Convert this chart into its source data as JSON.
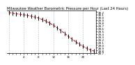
{
  "title": "Milwaukee Weather Barometric Pressure per Hour (Last 24 Hours)",
  "hours": [
    0,
    1,
    2,
    3,
    4,
    5,
    6,
    7,
    8,
    9,
    10,
    11,
    12,
    13,
    14,
    15,
    16,
    17,
    18,
    19,
    20,
    21,
    22,
    23
  ],
  "pressure": [
    30.18,
    30.16,
    30.14,
    30.12,
    30.1,
    30.08,
    30.05,
    30.02,
    29.98,
    29.93,
    29.87,
    29.8,
    29.72,
    29.63,
    29.53,
    29.43,
    29.32,
    29.22,
    29.12,
    29.03,
    28.95,
    28.88,
    28.82,
    28.78
  ],
  "line_color": "#cc0000",
  "marker_color": "#000000",
  "grid_color": "#bbbbbb",
  "bg_color": "#ffffff",
  "y_min": 28.7,
  "y_max": 30.25,
  "title_fontsize": 3.8,
  "tick_fontsize": 3.0,
  "linewidth": 0.7,
  "markersize": 2.0
}
